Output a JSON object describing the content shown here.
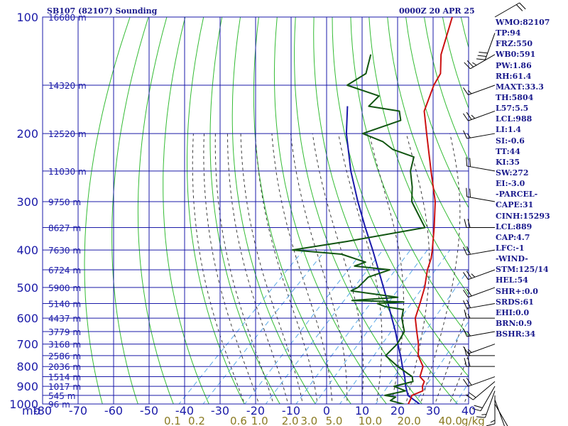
{
  "header": {
    "station": "SB107 (82107) Sounding",
    "time": "0000Z 20 APR 25"
  },
  "stats": [
    "WMO:82107",
    "TP:94",
    "FRZ:550",
    "WB0:591",
    "PW:1.86",
    "RH:61.4",
    "MAXT:33.3",
    "TH:5804",
    "L57:5.5",
    "LCL:988",
    "LI:1.4",
    "SI:-0.6",
    "TT:44",
    "KI:35",
    "SW:272",
    "EI:-3.0",
    "-PARCEL-",
    "CAPE:31",
    "CINH:15293",
    "LCL:889",
    "CAP:4.7",
    "LFC:-1",
    "-WIND-",
    "STM:125/14",
    "HEL:54",
    "SHR+:0.0",
    "SRDS:61",
    "EHI:0.0",
    "BRN:0.9",
    "BSHR:34"
  ],
  "colors": {
    "grid": "#1a1aa8",
    "dry_adiabat": "#33bb33",
    "moist_adiabat": "#3d3d3d",
    "mixing_ratio": "#5aa9e6",
    "temperature": "#cc1111",
    "dewpoint": "#115511",
    "parcel": "#1a1aaa",
    "axis_text": "#1a1aa8",
    "mixing_text": "#8a7a22",
    "barb": "#000000"
  },
  "chart_data": {
    "type": "line",
    "diagram": "skew-T",
    "x_axis_unit_label": "mb",
    "y_axis_unit_label": "g/kg",
    "temperature_ticks": [
      -80,
      -70,
      -60,
      -50,
      -40,
      -30,
      -20,
      -10,
      0,
      10,
      20,
      30,
      40
    ],
    "pressure_ticks": [
      100,
      200,
      300,
      400,
      500,
      600,
      700,
      800,
      900,
      1000
    ],
    "height_labels": [
      {
        "p": 100,
        "label": "16680 m"
      },
      {
        "p": 150,
        "label": "14320 m"
      },
      {
        "p": 200,
        "label": "12520 m"
      },
      {
        "p": 250,
        "label": "11030 m"
      },
      {
        "p": 300,
        "label": "9750 m"
      },
      {
        "p": 350,
        "label": "8627 m"
      },
      {
        "p": 400,
        "label": "7630 m"
      },
      {
        "p": 450,
        "label": "6724 m"
      },
      {
        "p": 500,
        "label": "5900 m"
      },
      {
        "p": 550,
        "label": "5140 m"
      },
      {
        "p": 600,
        "label": "4437 m"
      },
      {
        "p": 650,
        "label": "3779 m"
      },
      {
        "p": 700,
        "label": "3168 m"
      },
      {
        "p": 750,
        "label": "2586 m"
      },
      {
        "p": 800,
        "label": "2036 m"
      },
      {
        "p": 850,
        "label": "1514 m"
      },
      {
        "p": 900,
        "label": "1017 m"
      },
      {
        "p": 950,
        "label": "545 m"
      },
      {
        "p": 1000,
        "label": "96 m"
      }
    ],
    "mixing_ratio_labels": [
      "0.1",
      "0.2",
      "0.6",
      "1.0",
      "2.0",
      "3.0",
      "5.0",
      "10.0",
      "20.0",
      "40.0"
    ],
    "temperature_profile": [
      [
        1011,
        25.2
      ],
      [
        1000,
        23.0
      ],
      [
        975,
        22.4
      ],
      [
        950,
        21.6
      ],
      [
        925,
        23.4
      ],
      [
        900,
        22.0
      ],
      [
        875,
        21.2
      ],
      [
        850,
        18.6
      ],
      [
        800,
        16.6
      ],
      [
        750,
        12.2
      ],
      [
        700,
        9.0
      ],
      [
        650,
        5.0
      ],
      [
        600,
        0.8
      ],
      [
        550,
        -2.0
      ],
      [
        500,
        -5.2
      ],
      [
        450,
        -9.4
      ],
      [
        420,
        -11.6
      ],
      [
        400,
        -13.6
      ],
      [
        350,
        -19.4
      ],
      [
        300,
        -26.4
      ],
      [
        250,
        -36.2
      ],
      [
        200,
        -48.0
      ],
      [
        175,
        -55.0
      ],
      [
        150,
        -59.6
      ],
      [
        140,
        -61.0
      ],
      [
        125,
        -66.2
      ],
      [
        100,
        -73.6
      ]
    ],
    "dewpoint_profile": [
      [
        1011,
        23.6
      ],
      [
        1000,
        21.5
      ],
      [
        980,
        17.0
      ],
      [
        960,
        17.5
      ],
      [
        950,
        14.0
      ],
      [
        925,
        18.5
      ],
      [
        900,
        14.0
      ],
      [
        875,
        18.0
      ],
      [
        850,
        16.4
      ],
      [
        800,
        9.5
      ],
      [
        750,
        3.0
      ],
      [
        700,
        3.0
      ],
      [
        650,
        1.5
      ],
      [
        600,
        -3.0
      ],
      [
        570,
        -5.0
      ],
      [
        560,
        -11.0
      ],
      [
        550,
        -14.0
      ],
      [
        545,
        -7.0
      ],
      [
        540,
        -22.0
      ],
      [
        530,
        -10.0
      ],
      [
        510,
        -25.0
      ],
      [
        500,
        -24.0
      ],
      [
        470,
        -24.0
      ],
      [
        450,
        -20.0
      ],
      [
        440,
        -31.0
      ],
      [
        430,
        -29.0
      ],
      [
        410,
        -38.0
      ],
      [
        400,
        -53.0
      ],
      [
        380,
        -40.0
      ],
      [
        350,
        -22.0
      ],
      [
        300,
        -33.0
      ],
      [
        275,
        -37.0
      ],
      [
        250,
        -42.0
      ],
      [
        230,
        -45.0
      ],
      [
        220,
        -53.0
      ],
      [
        210,
        -58.0
      ],
      [
        200,
        -66.0
      ],
      [
        185,
        -59.0
      ],
      [
        175,
        -62.0
      ],
      [
        170,
        -72.0
      ],
      [
        160,
        -72.0
      ],
      [
        150,
        -84.0
      ],
      [
        140,
        -82.0
      ],
      [
        125,
        -86.0
      ]
    ],
    "parcel_profile": [
      [
        1011,
        27.4
      ],
      [
        950,
        20.5
      ],
      [
        900,
        17.3
      ],
      [
        850,
        14.3
      ],
      [
        800,
        10.8
      ],
      [
        750,
        7.2
      ],
      [
        700,
        3.2
      ],
      [
        650,
        -1.0
      ],
      [
        600,
        -5.8
      ],
      [
        550,
        -11.0
      ],
      [
        500,
        -16.8
      ],
      [
        450,
        -23.2
      ],
      [
        400,
        -30.4
      ],
      [
        350,
        -38.8
      ],
      [
        300,
        -48.2
      ],
      [
        250,
        -58.8
      ],
      [
        200,
        -70.6
      ],
      [
        170,
        -78.0
      ]
    ],
    "wind_barbs": [
      {
        "p": 1000,
        "dir": 150,
        "spd": 5
      },
      {
        "p": 975,
        "dir": 160,
        "spd": 10
      },
      {
        "p": 950,
        "dir": 180,
        "spd": 15
      },
      {
        "p": 925,
        "dir": 200,
        "spd": 15
      },
      {
        "p": 900,
        "dir": 210,
        "spd": 20
      },
      {
        "p": 875,
        "dir": 230,
        "spd": 20
      },
      {
        "p": 850,
        "dir": 250,
        "spd": 20
      },
      {
        "p": 800,
        "dir": 270,
        "spd": 20
      },
      {
        "p": 750,
        "dir": 270,
        "spd": 15
      },
      {
        "p": 700,
        "dir": 250,
        "spd": 15
      },
      {
        "p": 650,
        "dir": 260,
        "spd": 15
      },
      {
        "p": 600,
        "dir": 270,
        "spd": 15
      },
      {
        "p": 550,
        "dir": 260,
        "spd": 20
      },
      {
        "p": 500,
        "dir": 250,
        "spd": 20
      },
      {
        "p": 450,
        "dir": 250,
        "spd": 25
      },
      {
        "p": 400,
        "dir": 260,
        "spd": 20
      },
      {
        "p": 350,
        "dir": 270,
        "spd": 20
      },
      {
        "p": 300,
        "dir": 280,
        "spd": 20
      },
      {
        "p": 250,
        "dir": 280,
        "spd": 20
      },
      {
        "p": 200,
        "dir": 260,
        "spd": 15
      },
      {
        "p": 175,
        "dir": 250,
        "spd": 25
      },
      {
        "p": 150,
        "dir": 250,
        "spd": 15
      },
      {
        "p": 125,
        "dir": 240,
        "spd": 25
      },
      {
        "p": 110,
        "dir": 200,
        "spd": 30
      },
      {
        "p": 100,
        "dir": 60,
        "spd": 20
      }
    ]
  }
}
